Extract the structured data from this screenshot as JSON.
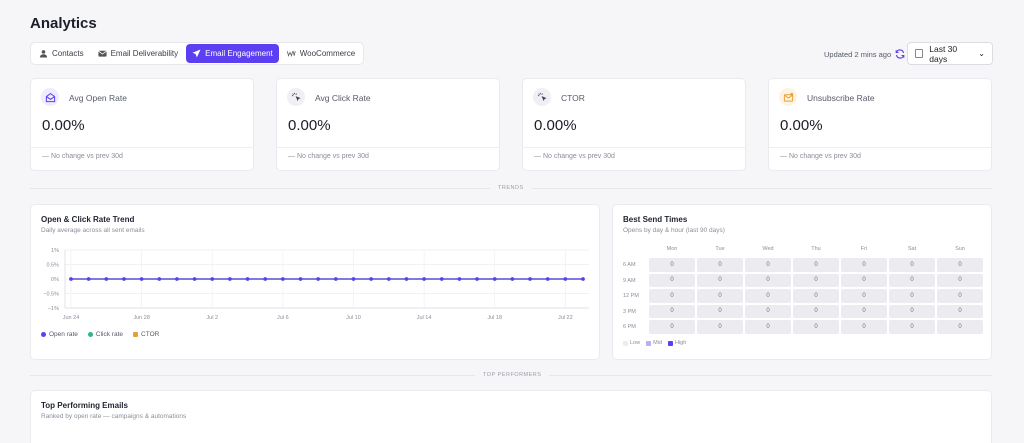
{
  "page": {
    "title": "Analytics"
  },
  "tabs": [
    {
      "label": "Contacts",
      "icon": "contacts-icon",
      "active": false
    },
    {
      "label": "Email Deliverability",
      "icon": "envelope-icon",
      "active": false
    },
    {
      "label": "Email Engagement",
      "icon": "send-icon",
      "active": true
    },
    {
      "label": "WooCommerce",
      "icon": "woocommerce-icon",
      "active": false
    }
  ],
  "header": {
    "updated": "Updated 2 mins ago",
    "date_range": "Last 30 days"
  },
  "stats": [
    {
      "label": "Avg Open Rate",
      "value": "0.00%",
      "compare": "— No change vs prev 30d",
      "icon": "open-mail-icon",
      "icon_color": "#5b3ff0",
      "icon_bg": "#eeecff"
    },
    {
      "label": "Avg Click Rate",
      "value": "0.00%",
      "compare": "— No change vs prev 30d",
      "icon": "click-icon",
      "icon_color": "#3c4254",
      "icon_bg": "#f0f0f4"
    },
    {
      "label": "CTOR",
      "value": "0.00%",
      "compare": "— No change vs prev 30d",
      "icon": "ctor-icon",
      "icon_color": "#3c4254",
      "icon_bg": "#f0f0f4"
    },
    {
      "label": "Unsubscribe Rate",
      "value": "0.00%",
      "compare": "— No change vs prev 30d",
      "icon": "unsubscribe-icon",
      "icon_color": "#e8a23a",
      "icon_bg": "#fdf3e3"
    }
  ],
  "sections": {
    "trends": "TRENDS",
    "top_performers": "TOP PERFORMERS"
  },
  "trend_panel": {
    "title": "Open & Click Rate Trend",
    "subtitle": "Daily average across all sent emails"
  },
  "chart_data": {
    "type": "line",
    "x": [
      "Jun 24",
      "Jun 25",
      "Jun 26",
      "Jun 27",
      "Jun 28",
      "Jun 29",
      "Jun 30",
      "Jul 1",
      "Jul 2",
      "Jul 3",
      "Jul 4",
      "Jul 5",
      "Jul 6",
      "Jul 7",
      "Jul 8",
      "Jul 9",
      "Jul 10",
      "Jul 11",
      "Jul 12",
      "Jul 13",
      "Jul 14",
      "Jul 15",
      "Jul 16",
      "Jul 17",
      "Jul 18",
      "Jul 19",
      "Jul 20",
      "Jul 21",
      "Jul 22",
      "Jul 23"
    ],
    "x_tick_labels": [
      "Jun 24",
      "Jun 28",
      "Jul 2",
      "Jul 6",
      "Jul 10",
      "Jul 14",
      "Jul 18",
      "Jul 22"
    ],
    "y_tick_labels": [
      "1%",
      "0.5%",
      "0%",
      "−0.5%",
      "−1%"
    ],
    "ylim": [
      -1,
      1
    ],
    "grid": true,
    "legend": "bottom-left",
    "series": [
      {
        "name": "Open rate",
        "color": "#5b3ff0",
        "values": [
          0,
          0,
          0,
          0,
          0,
          0,
          0,
          0,
          0,
          0,
          0,
          0,
          0,
          0,
          0,
          0,
          0,
          0,
          0,
          0,
          0,
          0,
          0,
          0,
          0,
          0,
          0,
          0,
          0,
          0
        ]
      },
      {
        "name": "Click rate",
        "color": "#2fb58a",
        "values": [
          0,
          0,
          0,
          0,
          0,
          0,
          0,
          0,
          0,
          0,
          0,
          0,
          0,
          0,
          0,
          0,
          0,
          0,
          0,
          0,
          0,
          0,
          0,
          0,
          0,
          0,
          0,
          0,
          0,
          0
        ]
      },
      {
        "name": "CTOR",
        "color": "#e0a23a",
        "values": [
          0,
          0,
          0,
          0,
          0,
          0,
          0,
          0,
          0,
          0,
          0,
          0,
          0,
          0,
          0,
          0,
          0,
          0,
          0,
          0,
          0,
          0,
          0,
          0,
          0,
          0,
          0,
          0,
          0,
          0
        ]
      }
    ]
  },
  "send_times": {
    "title": "Best Send Times",
    "subtitle": "Opens by day & hour (last 90 days)",
    "days": [
      "Mon",
      "Tue",
      "Wed",
      "Thu",
      "Fri",
      "Sat",
      "Sun"
    ],
    "hours": [
      "6 AM",
      "9 AM",
      "12 PM",
      "3 PM",
      "6 PM"
    ],
    "values": [
      [
        "0",
        "0",
        "0",
        "0",
        "0",
        "0",
        "0"
      ],
      [
        "0",
        "0",
        "0",
        "0",
        "0",
        "0",
        "0"
      ],
      [
        "0",
        "0",
        "0",
        "0",
        "0",
        "0",
        "0"
      ],
      [
        "0",
        "0",
        "0",
        "0",
        "0",
        "0",
        "0"
      ],
      [
        "0",
        "0",
        "0",
        "0",
        "0",
        "0",
        "0"
      ]
    ],
    "legend": [
      {
        "label": "Low",
        "color": "#ececf0"
      },
      {
        "label": "Mid",
        "color": "#b8aef5"
      },
      {
        "label": "High",
        "color": "#5b3ff0"
      }
    ]
  },
  "top_emails": {
    "title": "Top Performing Emails",
    "subtitle": "Ranked by open rate — campaigns & automations"
  }
}
